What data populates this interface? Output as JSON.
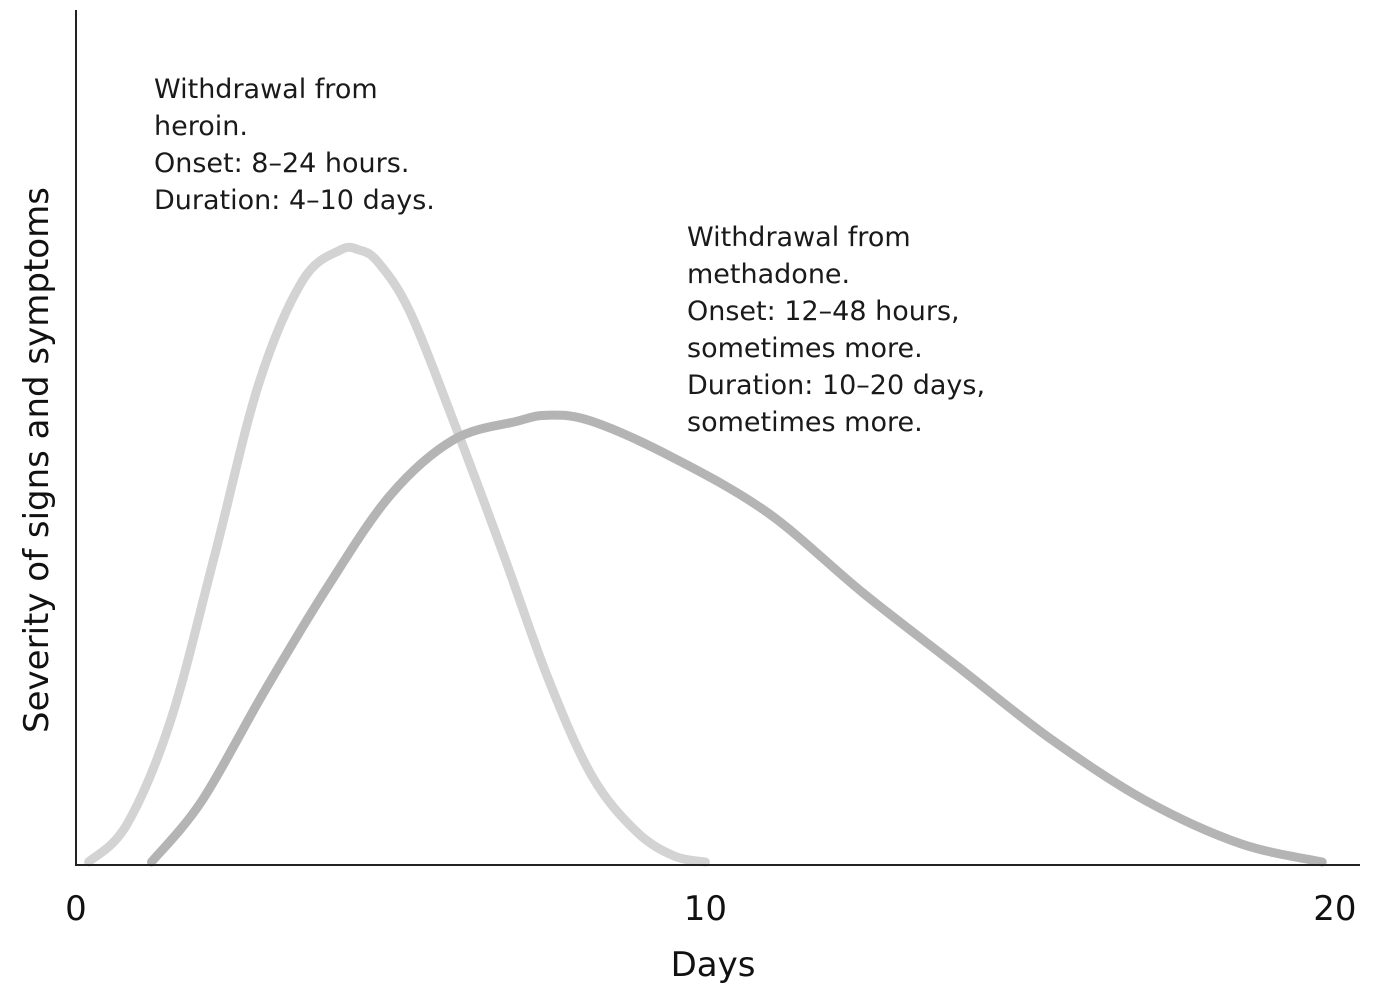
{
  "chart_data": {
    "type": "line",
    "title": "",
    "xlabel": "Days",
    "ylabel": "Severity of signs and symptoms",
    "xlim": [
      0,
      20.4
    ],
    "ylim": [
      0,
      100
    ],
    "x_ticks": [
      0,
      10,
      20
    ],
    "x_tick_labels": [
      "0",
      "10",
      "20"
    ],
    "grid": false,
    "series": [
      {
        "color": "#d3d3d3",
        "x": [
          0.2,
          0.8,
          1.5,
          2.2,
          2.9,
          3.6,
          4.2,
          4.5,
          4.8,
          5.3,
          6.0,
          6.8,
          7.5,
          8.2,
          8.9,
          9.5,
          10.0
        ],
        "y": [
          0,
          6,
          23,
          50,
          78,
          95,
          100,
          100,
          98,
          90,
          72,
          50,
          30,
          14,
          5,
          1,
          0
        ]
      },
      {
        "color": "#b4b4b4",
        "x": [
          1.2,
          2.0,
          3.0,
          4.0,
          5.0,
          6.0,
          7.0,
          7.5,
          8.2,
          9.5,
          11.0,
          12.5,
          14.0,
          15.5,
          17.0,
          18.5,
          19.8
        ],
        "y": [
          0,
          10,
          28,
          45,
          60,
          69,
          72,
          73,
          72,
          66,
          57,
          44,
          32,
          20,
          10,
          3,
          0
        ]
      }
    ],
    "annotations": [
      {
        "lines": [
          "Withdrawal from",
          "heroin.",
          "Onset: 8–24 hours.",
          "Duration: 4–10 days."
        ]
      },
      {
        "lines": [
          "Withdrawal from",
          "methadone.",
          "Onset: 12–48 hours,",
          "sometimes more.",
          "Duration: 10–20 days,",
          "sometimes more."
        ]
      }
    ]
  }
}
